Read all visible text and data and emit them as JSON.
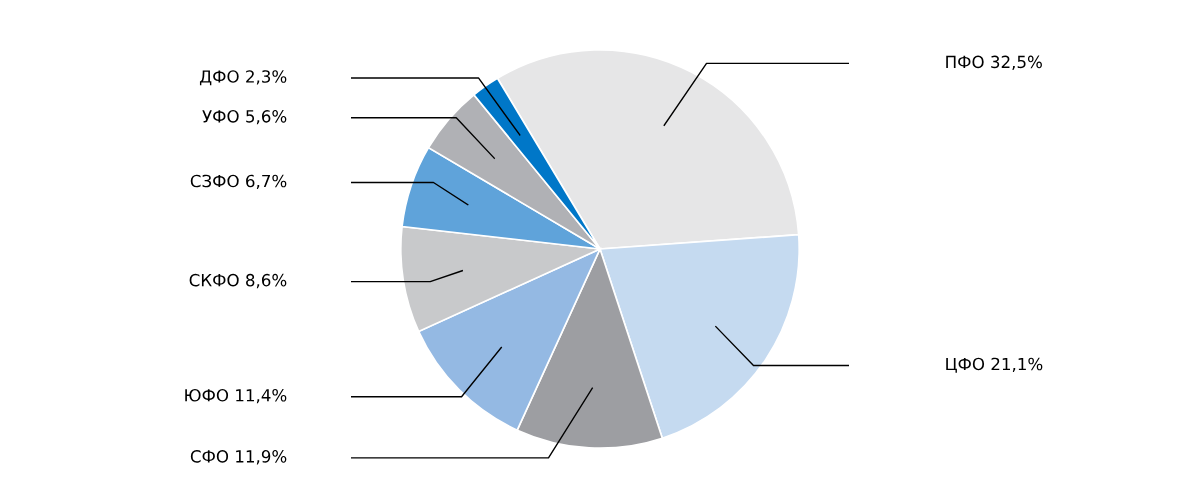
{
  "chart_data": {
    "type": "pie",
    "categories": [
      "ПФО",
      "ЦФО",
      "СФО",
      "ЮФО",
      "СКФО",
      "СЗФО",
      "УФО",
      "ДФО"
    ],
    "values": [
      32.5,
      21.1,
      11.9,
      11.4,
      8.6,
      6.7,
      5.6,
      2.3
    ],
    "value_labels": [
      "32,5%",
      "21,1%",
      "11,9%",
      "11,4%",
      "8,6%",
      "6,7%",
      "5,6%",
      "2,3%"
    ],
    "colors": [
      "#e6e6e7",
      "#c5daf0",
      "#9d9ea2",
      "#94b9e3",
      "#c8c9cb",
      "#5fa3da",
      "#b0b1b5",
      "#0077c8"
    ]
  }
}
